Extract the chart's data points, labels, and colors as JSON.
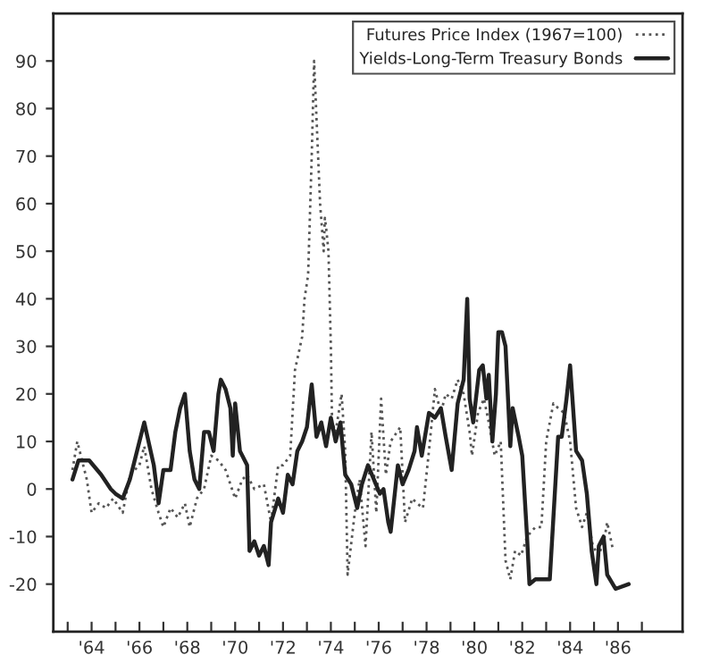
{
  "chart_data": {
    "type": "line",
    "series": [
      {
        "name": "Futures Price Index (1967=100)",
        "color": "#555555",
        "line_style": "dotted",
        "x": [
          1963.2,
          1963.4,
          1963.8,
          1964.0,
          1964.3,
          1964.6,
          1964.9,
          1965.3,
          1965.6,
          1966.0,
          1966.2,
          1966.5,
          1966.8,
          1967.0,
          1967.3,
          1967.6,
          1967.9,
          1968.1,
          1968.4,
          1968.7,
          1969.0,
          1969.3,
          1969.6,
          1970.0,
          1970.3,
          1970.5,
          1970.8,
          1971.2,
          1971.5,
          1971.8,
          1972.0,
          1972.3,
          1972.5,
          1972.8,
          1972.9,
          1973.05,
          1973.2,
          1973.3,
          1973.4,
          1973.55,
          1973.7,
          1973.75,
          1973.8,
          1973.9,
          1974.0,
          1974.05,
          1974.2,
          1974.45,
          1974.6,
          1974.7,
          1975.0,
          1975.2,
          1975.45,
          1975.7,
          1975.9,
          1976.1,
          1976.3,
          1976.5,
          1976.9,
          1977.1,
          1977.4,
          1977.6,
          1977.85,
          1978.1,
          1978.35,
          1978.6,
          1978.8,
          1979.05,
          1979.3,
          1979.55,
          1979.8,
          1979.9,
          1980.15,
          1980.4,
          1980.6,
          1980.85,
          1981.1,
          1981.3,
          1981.5,
          1981.7,
          1981.95,
          1982.2,
          1982.55,
          1982.8,
          1983.0,
          1983.3,
          1983.5,
          1983.75,
          1984.0,
          1984.25,
          1984.5,
          1984.7,
          1984.95,
          1985.2,
          1985.45,
          1985.55,
          1985.8
        ],
        "values": [
          4,
          10,
          2,
          -5,
          -3,
          -4,
          -2,
          -5,
          3,
          5,
          9,
          0,
          -5,
          -8,
          -4,
          -6,
          -3,
          -8,
          -2,
          0,
          7,
          6,
          4,
          -2,
          2,
          3,
          0,
          1,
          -7,
          5,
          5,
          7,
          25,
          32,
          40,
          45,
          70,
          90,
          78,
          60,
          50,
          57,
          55,
          50,
          30,
          14,
          12,
          20,
          8,
          -18,
          -5,
          2,
          -12,
          12,
          -5,
          19,
          3,
          10,
          13,
          -7,
          -2,
          -3,
          -4,
          8,
          21,
          16,
          20,
          19,
          23,
          20,
          12,
          7,
          16,
          19,
          14,
          7,
          10,
          -15,
          -19,
          -13,
          -14,
          -10,
          -8,
          -8,
          10,
          18,
          17,
          16,
          10,
          -4,
          -8,
          -5,
          -12,
          -14,
          -10,
          -7,
          -13
        ]
      },
      {
        "name": "Yields-Long-Term Treasury Bonds",
        "color": "#222222",
        "line_style": "solid",
        "x": [
          1963.2,
          1963.45,
          1963.9,
          1964.4,
          1964.8,
          1965.0,
          1965.3,
          1965.6,
          1966.0,
          1966.2,
          1966.6,
          1966.8,
          1967.0,
          1967.3,
          1967.5,
          1967.7,
          1967.9,
          1968.1,
          1968.3,
          1968.5,
          1968.7,
          1968.9,
          1969.1,
          1969.3,
          1969.4,
          1969.6,
          1969.8,
          1969.9,
          1970.0,
          1970.2,
          1970.5,
          1970.6,
          1970.8,
          1971.0,
          1971.2,
          1971.4,
          1971.5,
          1971.8,
          1972.0,
          1972.2,
          1972.4,
          1972.6,
          1972.8,
          1973.0,
          1973.2,
          1973.4,
          1973.6,
          1973.8,
          1974.0,
          1974.2,
          1974.4,
          1974.6,
          1974.85,
          1975.1,
          1975.3,
          1975.55,
          1975.8,
          1976.05,
          1976.2,
          1976.4,
          1976.5,
          1976.8,
          1977.0,
          1977.25,
          1977.5,
          1977.6,
          1977.8,
          1978.1,
          1978.35,
          1978.6,
          1978.8,
          1979.05,
          1979.3,
          1979.55,
          1979.7,
          1979.8,
          1979.95,
          1980.2,
          1980.35,
          1980.5,
          1980.6,
          1980.75,
          1980.9,
          1981.0,
          1981.15,
          1981.3,
          1981.5,
          1981.6,
          1981.85,
          1982.0,
          1982.2,
          1982.3,
          1982.55,
          1983.15,
          1983.5,
          1983.65,
          1983.85,
          1984.0,
          1984.25,
          1984.5,
          1984.7,
          1984.9,
          1985.1,
          1985.2,
          1985.4,
          1985.55,
          1985.9,
          1986.45
        ],
        "values": [
          2,
          6,
          6,
          3,
          0,
          -1,
          -2,
          2,
          10,
          14,
          5,
          -3,
          4,
          4,
          12,
          17,
          20,
          8,
          2,
          0,
          12,
          12,
          8,
          20,
          23,
          21,
          17,
          7,
          18,
          8,
          5,
          -13,
          -11,
          -14,
          -12,
          -16,
          -7,
          -2,
          -5,
          3,
          1,
          8,
          10,
          13,
          22,
          11,
          14,
          9,
          15,
          10,
          14,
          3,
          1,
          -4,
          1,
          5,
          2,
          -1,
          0,
          -7,
          -9,
          5,
          1,
          4,
          8,
          13,
          7,
          16,
          15,
          17,
          11,
          4,
          18,
          23,
          40,
          19,
          14,
          25,
          26,
          19,
          24,
          10,
          20,
          33,
          33,
          30,
          9,
          17,
          11,
          7,
          -10,
          -20,
          -19,
          -19,
          11,
          11,
          19,
          26,
          8,
          6,
          -1,
          -13,
          -20,
          -12,
          -10,
          -18,
          -21,
          -20
        ]
      }
    ],
    "xlim": [
      1962.4,
      1988.7
    ],
    "xticks": [
      {
        "value": 1963,
        "label": null
      },
      {
        "value": 1964,
        "label": "'64"
      },
      {
        "value": 1965,
        "label": null
      },
      {
        "value": 1966,
        "label": "'66"
      },
      {
        "value": 1967,
        "label": null
      },
      {
        "value": 1968,
        "label": "'68"
      },
      {
        "value": 1969,
        "label": null
      },
      {
        "value": 1970,
        "label": "'70"
      },
      {
        "value": 1971,
        "label": null
      },
      {
        "value": 1972,
        "label": "'72"
      },
      {
        "value": 1973,
        "label": null
      },
      {
        "value": 1974,
        "label": "'74"
      },
      {
        "value": 1975,
        "label": null
      },
      {
        "value": 1976,
        "label": "'76"
      },
      {
        "value": 1977,
        "label": null
      },
      {
        "value": 1978,
        "label": "'78"
      },
      {
        "value": 1979,
        "label": null
      },
      {
        "value": 1980,
        "label": "'80"
      },
      {
        "value": 1981,
        "label": null
      },
      {
        "value": 1982,
        "label": "'82"
      },
      {
        "value": 1983,
        "label": null
      },
      {
        "value": 1984,
        "label": "'84"
      },
      {
        "value": 1985,
        "label": null
      },
      {
        "value": 1986,
        "label": "'86"
      },
      {
        "value": 1987,
        "label": null
      }
    ],
    "ylim": [
      -30,
      100
    ],
    "yticks": [
      -20,
      -10,
      0,
      10,
      20,
      30,
      40,
      50,
      60,
      70,
      80,
      90
    ],
    "legend": "top right",
    "grid": false
  }
}
